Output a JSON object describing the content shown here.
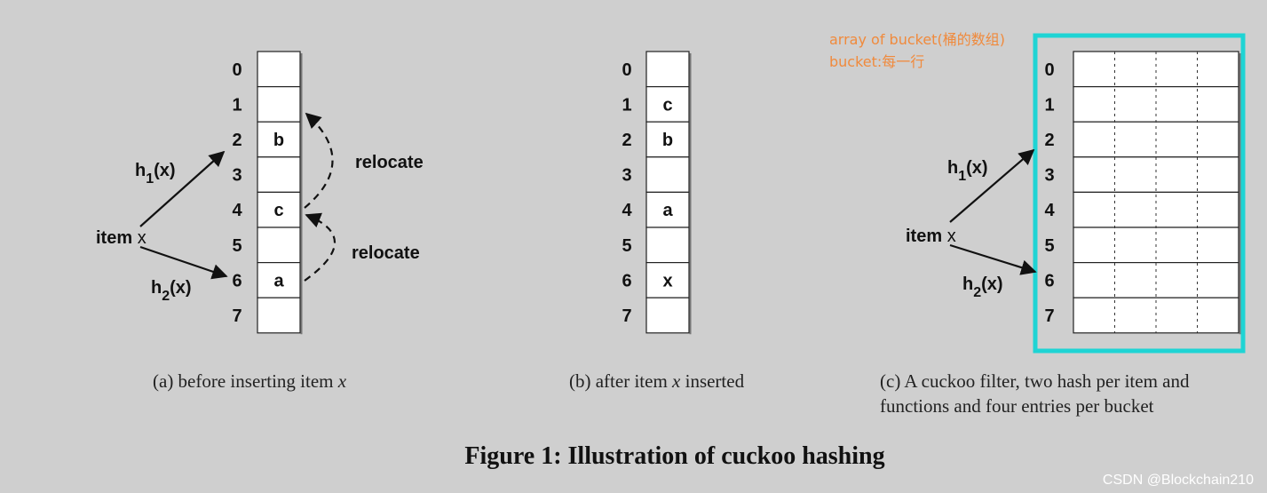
{
  "panel_a": {
    "indices": [
      "0",
      "1",
      "2",
      "3",
      "4",
      "5",
      "6",
      "7"
    ],
    "cells": [
      "",
      "",
      "b",
      "",
      "c",
      "",
      "a",
      ""
    ],
    "item_label": "item",
    "item_var": "x",
    "h1": {
      "base": "h",
      "sub": "1",
      "arg": "(x)"
    },
    "h2": {
      "base": "h",
      "sub": "2",
      "arg": "(x)"
    },
    "relocate_1": "relocate",
    "relocate_2": "relocate",
    "caption_prefix": "(a)  before inserting item ",
    "caption_var": "x"
  },
  "panel_b": {
    "indices": [
      "0",
      "1",
      "2",
      "3",
      "4",
      "5",
      "6",
      "7"
    ],
    "cells": [
      "",
      "c",
      "b",
      "",
      "a",
      "",
      "x",
      ""
    ],
    "caption_prefix": "(b)  after item ",
    "caption_var": "x",
    "caption_suffix": " inserted"
  },
  "panel_c": {
    "indices": [
      "0",
      "1",
      "2",
      "3",
      "4",
      "5",
      "6",
      "7"
    ],
    "item_label": "item",
    "item_var": "x",
    "h1": {
      "base": "h",
      "sub": "1",
      "arg": "(x)"
    },
    "h2": {
      "base": "h",
      "sub": "2",
      "arg": "(x)"
    },
    "caption_line1": "(c)  A cuckoo filter, two hash per item and",
    "caption_line2": "functions and four entries per bucket",
    "highlight_color": "#1fd4d4"
  },
  "annotations": {
    "line1": "array of bucket(桶的数组)",
    "line2": "bucket:每一行",
    "color": "#f08a3c"
  },
  "figure_title": "Figure 1: Illustration of cuckoo hashing",
  "watermark": "CSDN @Blockchain210"
}
